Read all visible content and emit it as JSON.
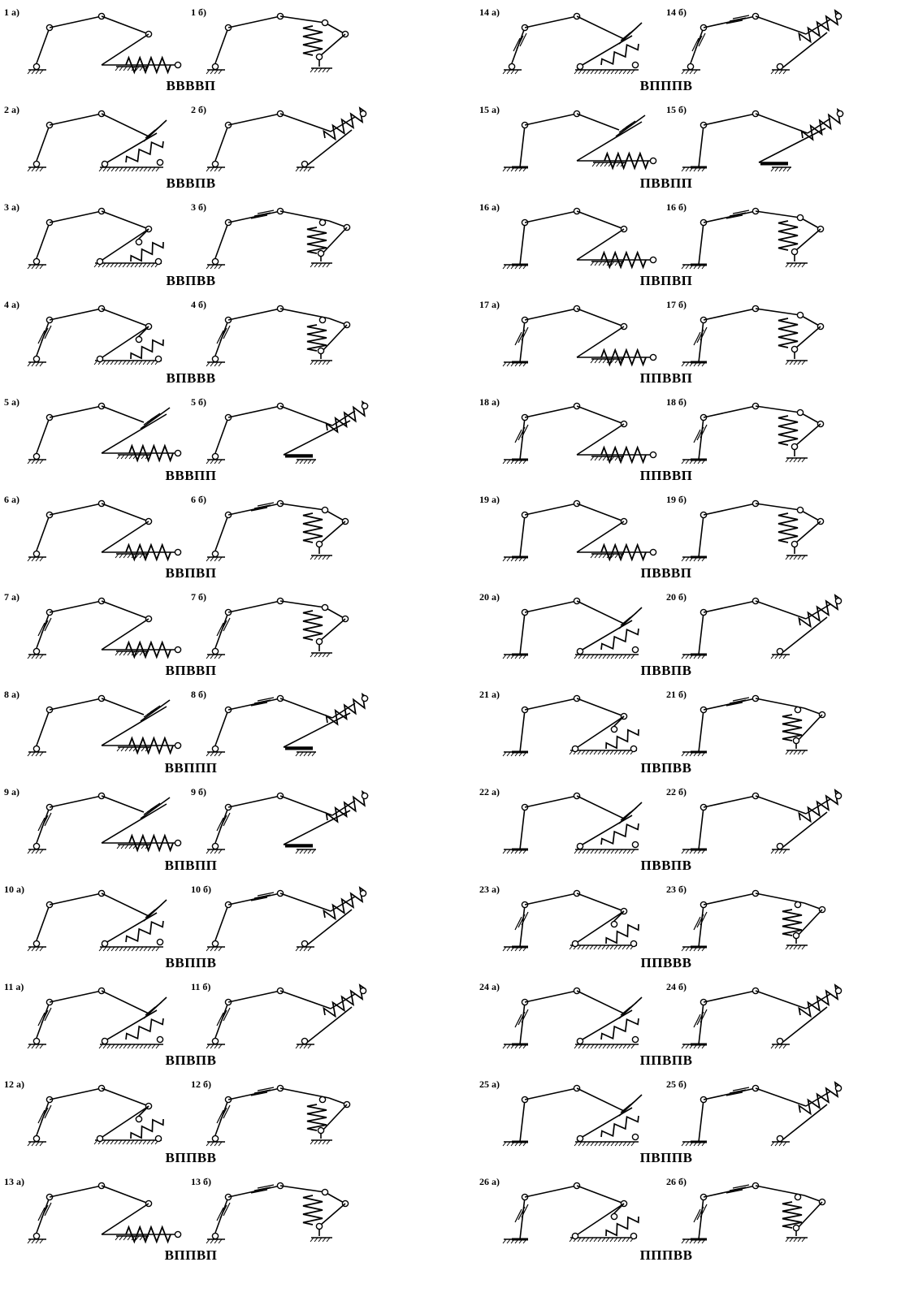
{
  "schemes": [
    {
      "a_label": "1 а)",
      "b_label": "1 б)",
      "code": "ВВВВП",
      "a_type": "A",
      "b_type": "B",
      "a_base": "pin",
      "b_top": "plain"
    },
    {
      "a_label": "2 а)",
      "b_label": "2 б)",
      "code": "ВВВПВ",
      "a_type": "C",
      "b_type": "D",
      "a_base": "pin",
      "b_top": "plain"
    },
    {
      "a_label": "3 а)",
      "b_label": "3 б)",
      "code": "ВВПВВ",
      "a_type": "E",
      "b_type": "F",
      "a_base": "pin",
      "b_top": "slider"
    },
    {
      "a_label": "4 а)",
      "b_label": "4 б)",
      "code": "ВПВВВ",
      "a_type": "E",
      "b_type": "F",
      "a_base": "pinslide",
      "b_top": "plain"
    },
    {
      "a_label": "5 а)",
      "b_label": "5 б)",
      "code": "ВВВПП",
      "a_type": "G",
      "b_type": "H",
      "a_base": "pin",
      "b_top": "plain"
    },
    {
      "a_label": "6 а)",
      "b_label": "6 б)",
      "code": "ВВПВП",
      "a_type": "A",
      "b_type": "B",
      "a_base": "pin",
      "b_top": "slider"
    },
    {
      "a_label": "7 а)",
      "b_label": "7 б)",
      "code": "ВПВВП",
      "a_type": "A",
      "b_type": "B",
      "a_base": "pinslide",
      "b_top": "plain"
    },
    {
      "a_label": "8 а)",
      "b_label": "8 б)",
      "code": "ВВППП",
      "a_type": "G",
      "b_type": "H",
      "a_base": "pin",
      "b_top": "slider"
    },
    {
      "a_label": "9 а)",
      "b_label": "9 б)",
      "code": "ВПВПП",
      "a_type": "G",
      "b_type": "H",
      "a_base": "pinslide",
      "b_top": "plain"
    },
    {
      "a_label": "10 а)",
      "b_label": "10 б)",
      "code": "ВВППВ",
      "a_type": "C",
      "b_type": "D",
      "a_base": "pin",
      "b_top": "slider"
    },
    {
      "a_label": "11 а)",
      "b_label": "11 б)",
      "code": "ВПВПВ",
      "a_type": "C",
      "b_type": "D",
      "a_base": "pinslide",
      "b_top": "plain"
    },
    {
      "a_label": "12 а)",
      "b_label": "12 б)",
      "code": "ВППВВ",
      "a_type": "E",
      "b_type": "F",
      "a_base": "pinslide",
      "b_top": "slider"
    },
    {
      "a_label": "13 а)",
      "b_label": "13 б)",
      "code": "ВППВП",
      "a_type": "A",
      "b_type": "B",
      "a_base": "pinslide",
      "b_top": "slider"
    },
    {
      "a_label": "14 а)",
      "b_label": "14 б)",
      "code": "ВПППВ",
      "a_type": "C",
      "b_type": "D",
      "a_base": "pinslide",
      "b_top": "slider"
    },
    {
      "a_label": "15 а)",
      "b_label": "15 б)",
      "code": "ПВВПП",
      "a_type": "G",
      "b_type": "H",
      "a_base": "fixed",
      "b_top": "plain"
    },
    {
      "a_label": "16 а)",
      "b_label": "16 б)",
      "code": "ПВПВП",
      "a_type": "A",
      "b_type": "B",
      "a_base": "fixed",
      "b_top": "slider"
    },
    {
      "a_label": "17 а)",
      "b_label": "17 б)",
      "code": "ППВВП",
      "a_type": "A",
      "b_type": "B",
      "a_base": "fixslide",
      "b_top": "plain"
    },
    {
      "a_label": "18 а)",
      "b_label": "18 б)",
      "code": "ППВВП",
      "a_type": "A",
      "b_type": "B",
      "a_base": "fixslide",
      "b_top": "plain"
    },
    {
      "a_label": "19 а)",
      "b_label": "19 б)",
      "code": "ПВВВП",
      "a_type": "A",
      "b_type": "B",
      "a_base": "fixed",
      "b_top": "plain"
    },
    {
      "a_label": "20 а)",
      "b_label": "20 б)",
      "code": "ПВВПВ",
      "a_type": "C",
      "b_type": "D",
      "a_base": "fixed",
      "b_top": "plain"
    },
    {
      "a_label": "21 а)",
      "b_label": "21 б)",
      "code": "ПВПВВ",
      "a_type": "E",
      "b_type": "F",
      "a_base": "fixed",
      "b_top": "slider"
    },
    {
      "a_label": "22 а)",
      "b_label": "22 б)",
      "code": "ПВВПВ",
      "a_type": "C",
      "b_type": "D",
      "a_base": "fixed",
      "b_top": "plain"
    },
    {
      "a_label": "23 а)",
      "b_label": "23 б)",
      "code": "ППВВВ",
      "a_type": "E",
      "b_type": "F",
      "a_base": "fixslide",
      "b_top": "plain"
    },
    {
      "a_label": "24 а)",
      "b_label": "24 б)",
      "code": "ППВПВ",
      "a_type": "C",
      "b_type": "D",
      "a_base": "fixslide",
      "b_top": "plain"
    },
    {
      "a_label": "25 а)",
      "b_label": "25 б)",
      "code": "ПВППВ",
      "a_type": "C",
      "b_type": "D",
      "a_base": "fixed",
      "b_top": "slider"
    },
    {
      "a_label": "26 а)",
      "b_label": "26 б)",
      "code": "ПППВВ",
      "a_type": "E",
      "b_type": "F",
      "a_base": "fixslide",
      "b_top": "slider"
    }
  ]
}
